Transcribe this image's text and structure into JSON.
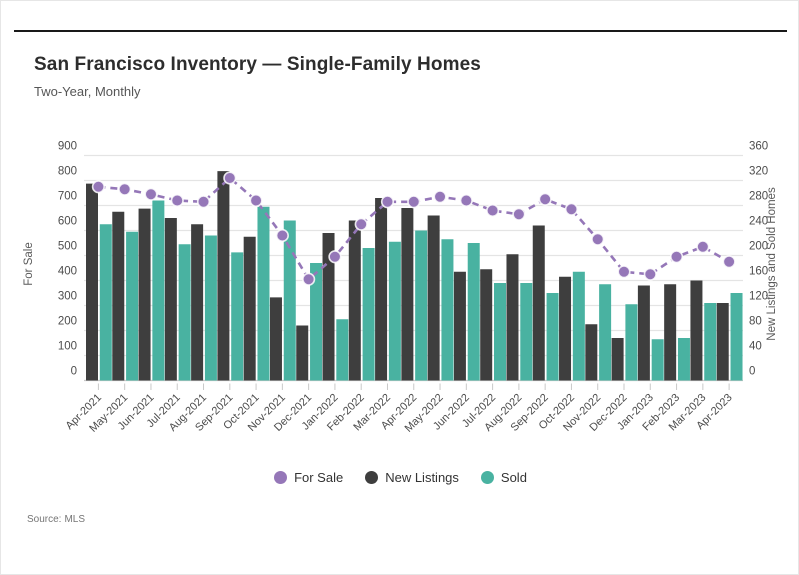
{
  "header": {
    "title": "San Francisco Inventory — Single-Family Homes",
    "subtitle": "Two-Year, Monthly"
  },
  "legend": [
    {
      "label": "For Sale",
      "color": "#9577b8"
    },
    {
      "label": "New Listings",
      "color": "#3e3e3e"
    },
    {
      "label": "Sold",
      "color": "#49b2a1"
    }
  ],
  "source": {
    "prefix": "Source:",
    "value": "MLS"
  },
  "colors": {
    "bar_dark": "#3e3e3e",
    "bar_teal": "#49b2a1",
    "line_purple": "#9577b8",
    "gridline": "#e4e4e4",
    "baseline": "#c9c9c9",
    "tick": "#c9c9c9",
    "axis_text": "#4c4c4c",
    "axis_title_text": "#595959"
  },
  "chart_data": {
    "type": "combo",
    "title": "San Francisco Inventory — Single-Family Homes",
    "subtitle": "Two-Year, Monthly",
    "categories": [
      "Apr-2021",
      "May-2021",
      "Jun-2021",
      "Jul-2021",
      "Aug-2021",
      "Sep-2021",
      "Oct-2021",
      "Nov-2021",
      "Dec-2021",
      "Jan-2022",
      "Feb-2022",
      "Mar-2022",
      "Apr-2022",
      "May-2022",
      "Jun-2022",
      "Jul-2022",
      "Aug-2022",
      "Sep-2022",
      "Oct-2022",
      "Nov-2022",
      "Dec-2022",
      "Jan-2023",
      "Feb-2023",
      "Mar-2023",
      "Apr-2023"
    ],
    "series": [
      {
        "name": "For Sale",
        "type": "line",
        "axis": "left",
        "color": "#9577b8",
        "values": [
          775,
          765,
          745,
          720,
          715,
          810,
          720,
          580,
          405,
          495,
          625,
          715,
          715,
          735,
          720,
          680,
          665,
          725,
          685,
          565,
          435,
          425,
          495,
          535,
          475
        ]
      },
      {
        "name": "New Listings",
        "type": "bar",
        "axis": "right",
        "color": "#3e3e3e",
        "values": [
          315,
          270,
          275,
          260,
          250,
          335,
          230,
          133,
          88,
          236,
          256,
          292,
          276,
          264,
          174,
          178,
          202,
          248,
          166,
          90,
          68,
          152,
          154,
          160,
          124
        ]
      },
      {
        "name": "Sold",
        "type": "bar",
        "axis": "right",
        "color": "#49b2a1",
        "values": [
          250,
          238,
          288,
          218,
          232,
          205,
          278,
          256,
          188,
          98,
          212,
          222,
          240,
          226,
          220,
          156,
          156,
          140,
          174,
          154,
          122,
          66,
          68,
          124,
          140
        ]
      }
    ],
    "axes": {
      "left": {
        "title": "For Sale",
        "min": 0,
        "max": 900,
        "step": 100
      },
      "right": {
        "title": "New Listings and Sold Homes",
        "min": 0,
        "max": 360,
        "step": 40
      }
    },
    "grid": true,
    "legend_position": "bottom",
    "source": "Source: MLS"
  }
}
